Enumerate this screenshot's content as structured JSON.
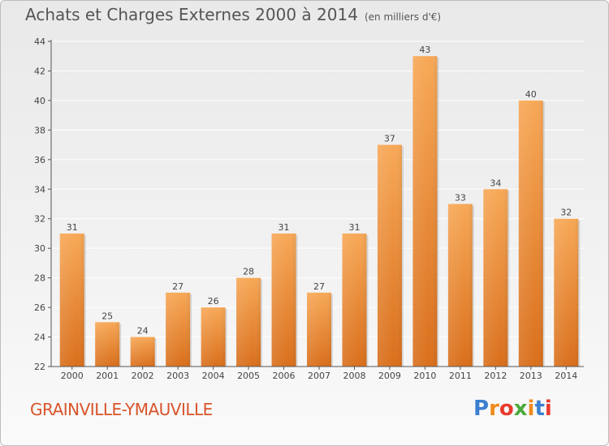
{
  "header": {
    "title": "Achats et Charges Externes 2000 à 2014",
    "unit": "(en milliers d'€)"
  },
  "footer": {
    "commune": "GRAINVILLE-YMAUVILLE",
    "brand": "Proxiti",
    "brand_colors": [
      "#3a7fd0",
      "#f08a1c",
      "#e93a2e",
      "#4aa93c",
      "#f08a1c",
      "#3a7fd0",
      "#e93a2e"
    ]
  },
  "colors": {
    "bar_top": "#f7a857",
    "bar_bottom": "#d96f1c",
    "axis": "#555555",
    "grid": "#ffffff",
    "commune_text": "#d8542a"
  },
  "chart_data": {
    "type": "bar",
    "categories": [
      "2000",
      "2001",
      "2002",
      "2003",
      "2004",
      "2005",
      "2006",
      "2007",
      "2008",
      "2009",
      "2010",
      "2011",
      "2012",
      "2013",
      "2014"
    ],
    "values": [
      31,
      25,
      24,
      27,
      26,
      28,
      31,
      27,
      31,
      37,
      43,
      33,
      34,
      40,
      32
    ],
    "ylim": [
      22,
      44
    ],
    "yticks": [
      22,
      24,
      26,
      28,
      30,
      32,
      34,
      36,
      38,
      40,
      42,
      44
    ],
    "grid": true,
    "title": "Achats et Charges Externes 2000 à 2014",
    "unit": "(en milliers d'€)"
  }
}
